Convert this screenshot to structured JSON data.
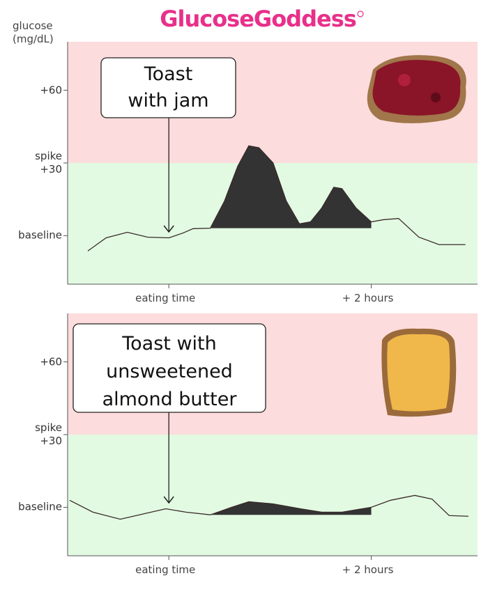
{
  "brand": "GlucoseGoddess",
  "chart_data": [
    {
      "type": "line",
      "y_label_lines": [
        "glucose",
        "(mg/dL)"
      ],
      "annotation_lines": [
        "Toast",
        "with jam"
      ],
      "x": [
        -0.8,
        -0.62,
        -0.41,
        -0.21,
        0,
        0.14,
        0.24,
        0.41,
        0.55,
        0.68,
        0.79,
        0.89,
        1.03,
        1.16,
        1.29,
        1.4,
        1.51,
        1.63,
        1.71,
        1.85,
        2,
        2.12,
        2.27,
        2.47,
        2.67,
        2.93
      ],
      "values": [
        -6.3,
        -0.9,
        1.4,
        -0.6,
        -0.9,
        1.1,
        2.9,
        3.1,
        14.3,
        28.6,
        37.1,
        36.3,
        30,
        14.3,
        4.9,
        5.7,
        11.4,
        20,
        19.4,
        11.4,
        5.7,
        6.6,
        7.1,
        -0.6,
        -3.7,
        -3.7
      ],
      "highlight_x": [
        0.41,
        2
      ],
      "color": "#3a2a2a",
      "fill_color": "#333333",
      "zone_colors": [
        "#fcdcdc",
        "#e2fae2"
      ],
      "xlim": [
        -1,
        3.05
      ],
      "ylim": [
        -20,
        80
      ],
      "xticks": [
        {
          "value": 0,
          "label": "eating time"
        },
        {
          "value": 2,
          "label": "+ 2 hours"
        }
      ],
      "yticks": [
        {
          "value": 0,
          "label": "baseline"
        },
        {
          "value": 30,
          "label": "spike +30"
        },
        {
          "value": 60,
          "label": "+60"
        }
      ]
    },
    {
      "type": "line",
      "annotation_lines": [
        "Toast with",
        "unsweetened",
        "almond butter"
      ],
      "x": [
        -0.98,
        -0.75,
        -0.48,
        -0.27,
        -0.03,
        0.17,
        0.41,
        0.62,
        0.79,
        1.03,
        1.3,
        1.51,
        1.71,
        2,
        2.19,
        2.43,
        2.6,
        2.77,
        2.96
      ],
      "values": [
        2.9,
        -2,
        -4.9,
        -2.9,
        -0.6,
        -2,
        -3.1,
        0,
        2.3,
        1.4,
        -0.6,
        -2,
        -2,
        0,
        2.9,
        4.9,
        3.4,
        -3.4,
        -3.7
      ],
      "highlight_x": [
        0.41,
        2
      ],
      "color": "#3a2a2a",
      "fill_color": "#333333",
      "zone_colors": [
        "#fcdcdc",
        "#e2fae2"
      ],
      "xlim": [
        -1,
        3.05
      ],
      "ylim": [
        -20,
        80
      ],
      "xticks": [
        {
          "value": 0,
          "label": "eating time"
        },
        {
          "value": 2,
          "label": "+ 2 hours"
        }
      ],
      "yticks": [
        {
          "value": 0,
          "label": "baseline"
        },
        {
          "value": 30,
          "label": "spike +30"
        },
        {
          "value": 60,
          "label": "+60"
        }
      ]
    }
  ]
}
